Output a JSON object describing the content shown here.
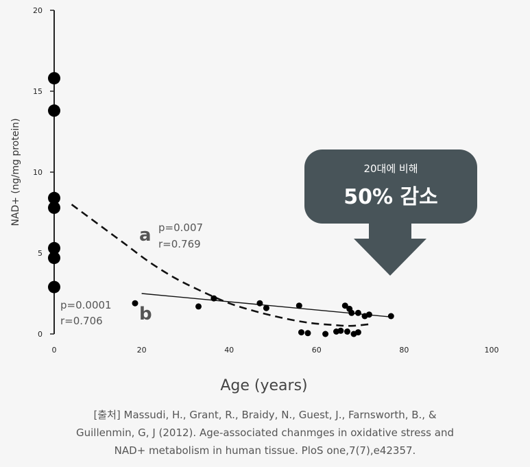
{
  "chart_data": {
    "type": "scatter",
    "xlabel": "Age (years)",
    "ylabel": "NAD+ (ng/mg protein)",
    "xlim": [
      0,
      100
    ],
    "ylim": [
      0,
      20
    ],
    "x_ticks": [
      "0",
      "20",
      "40",
      "60",
      "80",
      "100"
    ],
    "y_ticks": [
      "0",
      "5",
      "10",
      "15",
      "20"
    ],
    "series": [
      {
        "name": "a",
        "label": "a",
        "stats": [
          "p=0.007",
          "r=0.769"
        ],
        "line_style": "dashed",
        "curve": [
          [
            4,
            8.0
          ],
          [
            10,
            6.8
          ],
          [
            16,
            5.6
          ],
          [
            22,
            4.4
          ],
          [
            28,
            3.4
          ],
          [
            34,
            2.6
          ],
          [
            40,
            1.9
          ],
          [
            46,
            1.4
          ],
          [
            52,
            1.0
          ],
          [
            58,
            0.7
          ],
          [
            64,
            0.55
          ],
          [
            68,
            0.5
          ],
          [
            72,
            0.6
          ]
        ],
        "points": [
          [
            0,
            15.8
          ],
          [
            0,
            13.8
          ],
          [
            0,
            8.4
          ],
          [
            0,
            7.8
          ],
          [
            0,
            5.3
          ],
          [
            0,
            4.7
          ],
          [
            0,
            2.9
          ]
        ]
      },
      {
        "name": "b",
        "label": "b",
        "stats": [
          "p=0.0001",
          "r=0.706"
        ],
        "line_style": "solid",
        "curve": [
          [
            20,
            2.5
          ],
          [
            77,
            1.05
          ]
        ],
        "points": [
          [
            18.5,
            1.9
          ],
          [
            33,
            1.7
          ],
          [
            36.5,
            2.2
          ],
          [
            47,
            1.9
          ],
          [
            48.5,
            1.6
          ],
          [
            56,
            1.75
          ],
          [
            56.5,
            0.1
          ],
          [
            58,
            0.05
          ],
          [
            62,
            0.0
          ],
          [
            64.5,
            0.15
          ],
          [
            65.5,
            0.2
          ],
          [
            66.5,
            1.75
          ],
          [
            67,
            0.15
          ],
          [
            67.5,
            1.55
          ],
          [
            68,
            1.3
          ],
          [
            68.5,
            0.0
          ],
          [
            69.5,
            0.1
          ],
          [
            69.5,
            1.3
          ],
          [
            71,
            1.1
          ],
          [
            72,
            1.2
          ],
          [
            77,
            1.1
          ]
        ]
      }
    ]
  },
  "callout": {
    "subtitle": "20대에 비해",
    "headline": "50% 감소",
    "color": "#485459"
  },
  "citation": {
    "lines": [
      "[출처] Massudi, H., Grant, R., Braidy, N., Guest, J., Farnsworth, B., &",
      "Guillenmin, G, J (2012). Age-associated chanmges in oxidative stress and",
      "NAD+ metabolism in human tissue. PloS one,7(7),e42357."
    ]
  }
}
